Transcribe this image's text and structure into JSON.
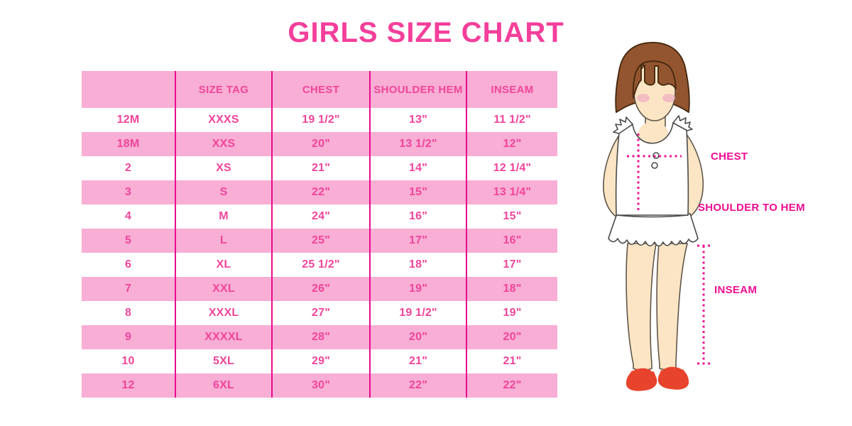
{
  "title": "GIRLS SIZE CHART",
  "chart_data": {
    "type": "table",
    "title": "GIRLS SIZE CHART",
    "columns": [
      "",
      "SIZE TAG",
      "CHEST",
      "SHOULDER HEM",
      "INSEAM"
    ],
    "rows": [
      [
        "12M",
        "XXXS",
        "19 1/2\"",
        "13\"",
        "11 1/2\""
      ],
      [
        "18M",
        "XXS",
        "20\"",
        "13 1/2\"",
        "12\""
      ],
      [
        "2",
        "XS",
        "21\"",
        "14\"",
        "12 1/4\""
      ],
      [
        "3",
        "S",
        "22\"",
        "15\"",
        "13 1/4\""
      ],
      [
        "4",
        "M",
        "24\"",
        "16\"",
        "15\""
      ],
      [
        "5",
        "L",
        "25\"",
        "17\"",
        "16\""
      ],
      [
        "6",
        "XL",
        "25 1/2\"",
        "18\"",
        "17\""
      ],
      [
        "7",
        "XXL",
        "26\"",
        "19\"",
        "18\""
      ],
      [
        "8",
        "XXXL",
        "27\"",
        "19 1/2\"",
        "19\""
      ],
      [
        "9",
        "XXXXL",
        "28\"",
        "20\"",
        "20\""
      ],
      [
        "10",
        "5XL",
        "29\"",
        "21\"",
        "21\""
      ],
      [
        "12",
        "6XL",
        "30\"",
        "22\"",
        "22\""
      ]
    ],
    "row_striping": "alternating white and pink, header pink",
    "legend_position": "none",
    "grid": "vertical magenta column dividers only"
  },
  "measurements": {
    "chest_label": "CHEST",
    "shoulder_label": "SHOULDER TO HEM",
    "inseam_label": "INSEAM"
  },
  "colors": {
    "title_pink": "#F43F9B",
    "row_pink": "#F8AED5",
    "divider": "#E90B8C",
    "table_text": "#F0459B",
    "label_magenta": "#EE0D92",
    "dot_pink": "#ED1690",
    "hair_brown": "#93552F",
    "hair_outline": "#4A2C14",
    "skin": "#FBE5C4",
    "skin_outline": "#60564B",
    "blush": "#F2AFC2",
    "dress_outline": "#4A4A4A",
    "shoe_red": "#E8432C"
  }
}
